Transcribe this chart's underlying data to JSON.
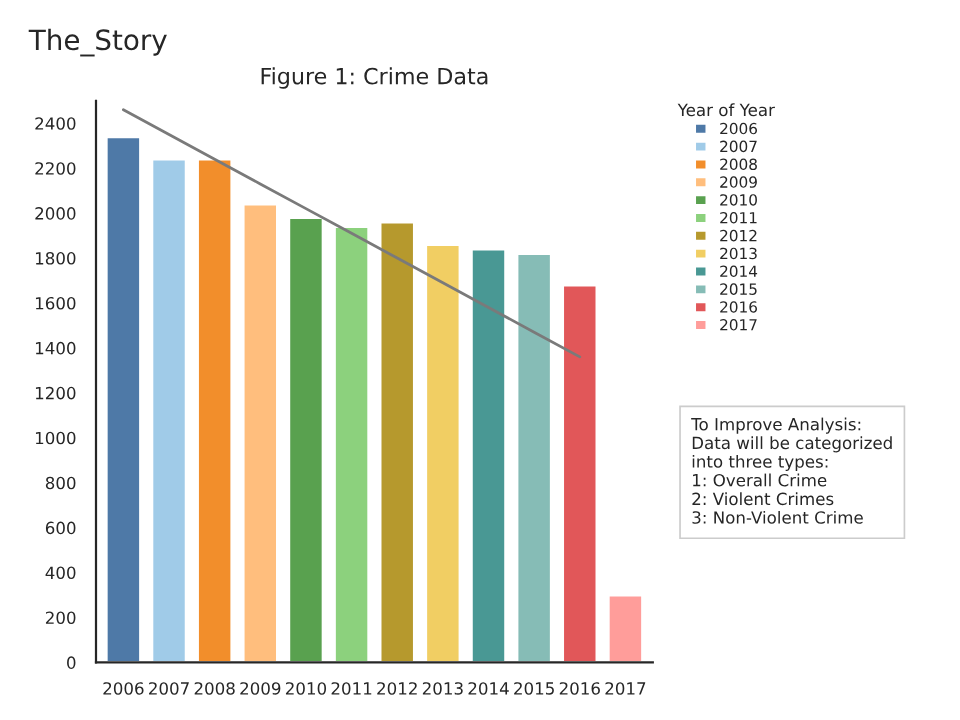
{
  "chart_data": {
    "type": "bar",
    "title": "The_Story",
    "subtitle": "Figure 1: Crime Data",
    "legend_title": "Year of Year",
    "categories": [
      "2006",
      "2007",
      "2008",
      "2009",
      "2010",
      "2011",
      "2012",
      "2013",
      "2014",
      "2015",
      "2016",
      "2017"
    ],
    "values": [
      2340,
      2240,
      2240,
      2040,
      1980,
      1940,
      1960,
      1860,
      1840,
      1820,
      1680,
      300
    ],
    "colors": [
      "#4e79a7",
      "#a0cbe8",
      "#f28e2b",
      "#ffbe7d",
      "#59a14f",
      "#8cd17d",
      "#b6992d",
      "#f1ce63",
      "#499894",
      "#86bcb6",
      "#e15759",
      "#ff9d9a"
    ],
    "series": [
      {
        "type": "line",
        "color": "#7a7a7a",
        "values": [
          2460,
          2350,
          2240,
          2130,
          2020,
          1910,
          1800,
          1690,
          1580,
          1470,
          1360,
          null
        ]
      }
    ],
    "ylim": [
      0,
      2500
    ],
    "yticks": [
      0,
      200,
      400,
      600,
      800,
      1000,
      1200,
      1400,
      1600,
      1800,
      2000,
      2200,
      2400
    ],
    "grid": false,
    "annotations": [
      "To Improve Analysis:\nData will be categorized\ninto three types:\n1: Overall Crime\n2: Violent Crimes\n3: Non-Violent Crime"
    ]
  }
}
